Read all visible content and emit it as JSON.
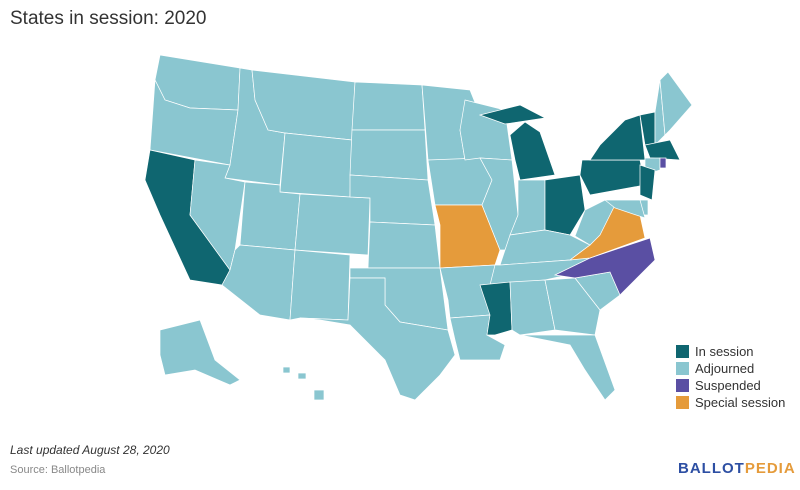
{
  "title": "States in session: 2020",
  "legend": [
    {
      "label": "In session",
      "status": "in",
      "color": "#0f6670"
    },
    {
      "label": "Adjourned",
      "status": "adj",
      "color": "#8ac6d0"
    },
    {
      "label": "Suspended",
      "status": "sus",
      "color": "#5a4fa3"
    },
    {
      "label": "Special session",
      "status": "spec",
      "color": "#e59b3b"
    }
  ],
  "states": {
    "WA": "adj",
    "OR": "adj",
    "CA": "in",
    "ID": "adj",
    "NV": "adj",
    "MT": "adj",
    "WY": "adj",
    "UT": "adj",
    "AZ": "adj",
    "CO": "adj",
    "NM": "adj",
    "ND": "adj",
    "SD": "adj",
    "NE": "adj",
    "KS": "adj",
    "OK": "adj",
    "TX": "adj",
    "MN": "adj",
    "IA": "adj",
    "MO": "spec",
    "AR": "adj",
    "LA": "adj",
    "WI": "adj",
    "IL": "adj",
    "MI": "in",
    "IN": "adj",
    "OH": "in",
    "KY": "adj",
    "TN": "adj",
    "MS": "in",
    "AL": "adj",
    "GA": "adj",
    "FL": "adj",
    "SC": "adj",
    "NC": "sus",
    "VA": "spec",
    "WV": "adj",
    "PA": "in",
    "NY": "in",
    "VT": "in",
    "NH": "adj",
    "ME": "adj",
    "MA": "in",
    "CT": "adj",
    "RI": "sus",
    "NJ": "in",
    "DE": "adj",
    "MD": "adj",
    "AK": "adj",
    "HI": "adj"
  },
  "footer": {
    "updated": "Last updated August 28, 2020",
    "source": "Source: Ballotpedia"
  },
  "logo": {
    "part1": "BALLOT",
    "part2": "PEDIA",
    "color1": "#2d4fa3",
    "color2": "#e59b3b"
  }
}
